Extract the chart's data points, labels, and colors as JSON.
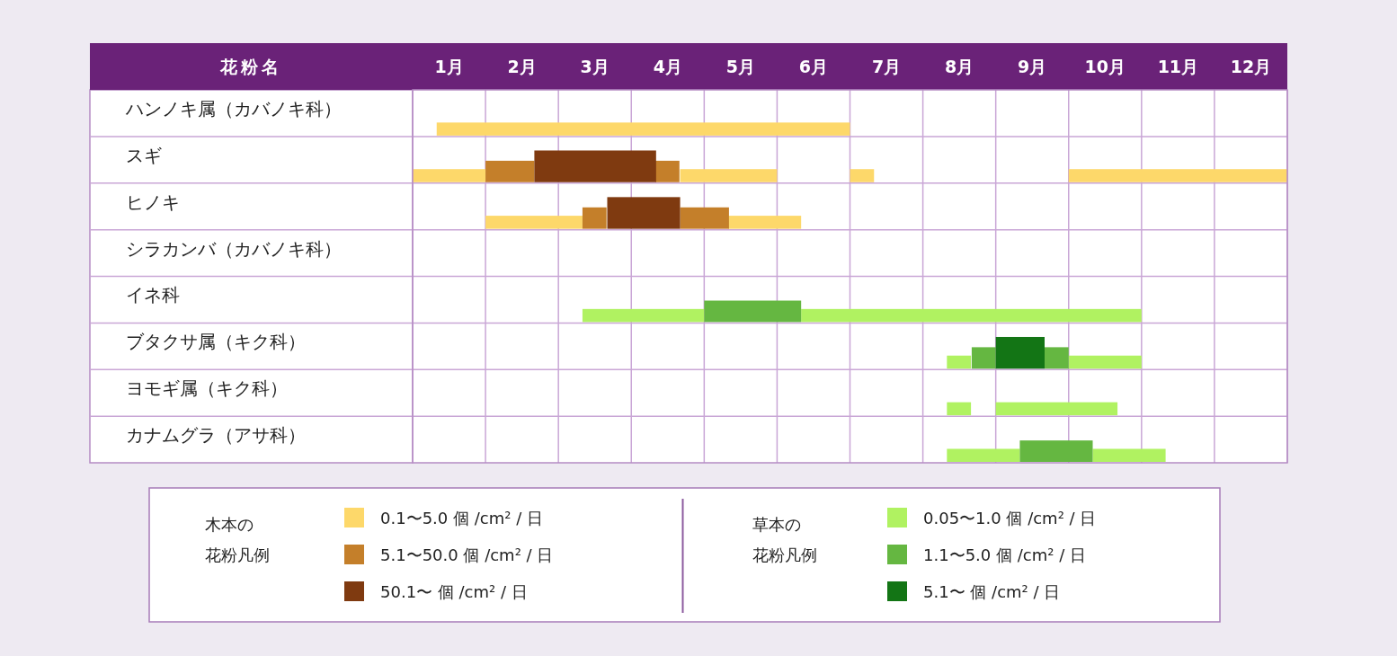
{
  "chart_data": {
    "type": "bar",
    "orientation": "horizontal",
    "ylabel": "花粉名",
    "categories": [
      "ハンノキ属（カバノキ科）",
      "スギ",
      "ヒノキ",
      "シラカンバ（カバノキ科）",
      "イネ科",
      "ブタクサ属（キク科）",
      "ヨモギ属（キク科）",
      "カナムグラ（アサ科）"
    ],
    "xlim": [
      1,
      13
    ],
    "xticks": [
      {
        "value": 1,
        "label": null
      },
      {
        "value": 1.5,
        "label": "1月"
      },
      {
        "value": 2,
        "label": null
      },
      {
        "value": 2.5,
        "label": "2月"
      },
      {
        "value": 3,
        "label": null
      },
      {
        "value": 3.5,
        "label": "3月"
      },
      {
        "value": 4,
        "label": null
      },
      {
        "value": 4.5,
        "label": "4月"
      },
      {
        "value": 5,
        "label": null
      },
      {
        "value": 5.5,
        "label": "5月"
      },
      {
        "value": 6,
        "label": null
      },
      {
        "value": 6.5,
        "label": "6月"
      },
      {
        "value": 7,
        "label": null
      },
      {
        "value": 7.5,
        "label": "7月"
      },
      {
        "value": 8,
        "label": null
      },
      {
        "value": 8.5,
        "label": "8月"
      },
      {
        "value": 9,
        "label": null
      },
      {
        "value": 9.5,
        "label": "9月"
      },
      {
        "value": 10,
        "label": null
      },
      {
        "value": 10.5,
        "label": "10月"
      },
      {
        "value": 11,
        "label": null
      },
      {
        "value": 11.5,
        "label": "11月"
      },
      {
        "value": 12,
        "label": null
      },
      {
        "value": 12.5,
        "label": "12月"
      },
      {
        "value": 13,
        "label": null
      }
    ],
    "grid": true,
    "legend": "bottom",
    "series": [
      {
        "name": "0.1〜5.0 個 /cm² / 日",
        "color": "#fdd86a",
        "base": [
          1.33,
          1.0,
          2.0,
          null,
          null,
          null,
          null,
          null
        ],
        "values": [
          5.67,
          1.0,
          1.33,
          null,
          null,
          null,
          null,
          null
        ]
      },
      {
        "color": "#fdd86a",
        "base": [
          null,
          4.67,
          5.33,
          null,
          null,
          null,
          null,
          null
        ],
        "values": [
          null,
          1.33,
          1.0,
          null,
          null,
          null,
          null,
          null
        ]
      },
      {
        "color": "#fdd86a",
        "base": [
          null,
          7.0,
          null,
          null,
          null,
          null,
          null,
          null
        ],
        "values": [
          null,
          0.33,
          null,
          null,
          null,
          null,
          null,
          null
        ]
      },
      {
        "color": "#fdd86a",
        "base": [
          null,
          10.0,
          null,
          null,
          null,
          null,
          null,
          null
        ],
        "values": [
          null,
          3.0,
          null,
          null,
          null,
          null,
          null,
          null
        ]
      },
      {
        "name": "5.1〜50.0 個 /cm² / 日",
        "color": "#c47f2a",
        "base": [
          null,
          2.0,
          3.33,
          null,
          null,
          null,
          null,
          null
        ],
        "values": [
          null,
          0.67,
          0.33,
          null,
          null,
          null,
          null,
          null
        ]
      },
      {
        "color": "#c47f2a",
        "base": [
          null,
          4.33,
          4.67,
          null,
          null,
          null,
          null,
          null
        ],
        "values": [
          null,
          0.33,
          0.67,
          null,
          null,
          null,
          null,
          null
        ]
      },
      {
        "name": "50.1〜 個 /cm² / 日",
        "color": "#7f3a10",
        "base": [
          null,
          2.67,
          3.67,
          null,
          null,
          null,
          null,
          null
        ],
        "values": [
          null,
          1.67,
          1.0,
          null,
          null,
          null,
          null,
          null
        ]
      },
      {
        "name": "0.05〜1.0 個 /cm² / 日",
        "color": "#b0f261",
        "base": [
          null,
          null,
          null,
          null,
          3.33,
          8.33,
          8.33,
          8.33
        ],
        "values": [
          null,
          null,
          null,
          null,
          1.67,
          0.33,
          0.33,
          1.0
        ]
      },
      {
        "color": "#b0f261",
        "base": [
          null,
          null,
          null,
          null,
          6.33,
          10.0,
          9.0,
          10.33
        ],
        "values": [
          null,
          null,
          null,
          null,
          4.67,
          1.0,
          1.67,
          1.0
        ]
      },
      {
        "name": "1.1〜5.0 個 /cm² / 日",
        "color": "#65b741",
        "base": [
          null,
          null,
          null,
          null,
          5.0,
          8.67,
          null,
          9.33
        ],
        "values": [
          null,
          null,
          null,
          null,
          1.33,
          0.33,
          null,
          1.0
        ]
      },
      {
        "color": "#65b741",
        "base": [
          null,
          null,
          null,
          null,
          null,
          9.67,
          null,
          null
        ],
        "values": [
          null,
          null,
          null,
          null,
          null,
          0.33,
          null,
          null
        ]
      },
      {
        "name": "5.1〜 個 /cm² / 日",
        "color": "#137515",
        "base": [
          null,
          null,
          null,
          null,
          null,
          9.0,
          null,
          null
        ],
        "values": [
          null,
          null,
          null,
          null,
          null,
          0.67,
          null,
          null
        ]
      }
    ],
    "annotations": [
      "木本の",
      "花粉凡例",
      "草本の",
      "花粉凡例"
    ]
  }
}
